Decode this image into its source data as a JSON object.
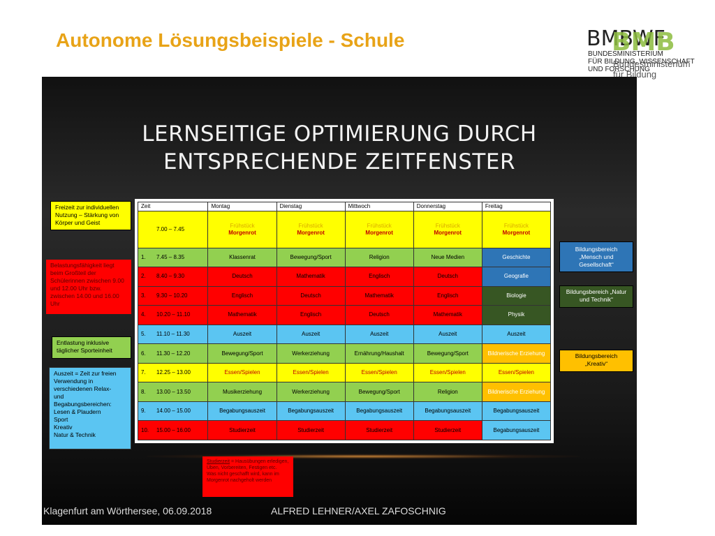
{
  "slide": {
    "title": "Autonome Lösungsbeispiele - Schule",
    "footer_left": "Klagenfurt am Wörthersee, 06.09.2018",
    "footer_right": "ALFRED LEHNER/AXEL ZAFOSCHNIG"
  },
  "logo": {
    "bmbwf": "BMBWF",
    "bmb": "BMB",
    "line1": "BUNDESMINISTERIUM",
    "line2": "FÜR BILDUNG, WISSENSCHAFT",
    "line3": "UND FORSCHUNG",
    "sub1": "Bundesministerium",
    "sub2": "für Bildung"
  },
  "panel": {
    "heading_line1": "LERNSEITIGE OPTIMIERUNG DURCH",
    "heading_line2": "ENTSPRECHENDE ZEITFENSTER"
  },
  "schedule": {
    "headers": [
      "Zeit",
      "Montag",
      "Dienstag",
      "Mittwoch",
      "Donnerstag",
      "Freitag"
    ],
    "rows": [
      {
        "num": "",
        "time": "7.00 – 7.45",
        "color": "y",
        "cells": [
          {
            "fr": "Frühstück",
            "mr": "Morgenrot",
            "c": "y"
          },
          {
            "fr": "Frühstück",
            "mr": "Morgenrot",
            "c": "y"
          },
          {
            "fr": "Frühstück",
            "mr": "Morgenrot",
            "c": "y"
          },
          {
            "fr": "Frühstück",
            "mr": "Morgenrot",
            "c": "y"
          },
          {
            "fr": "Frühstück",
            "mr": "Morgenrot",
            "c": "y"
          }
        ]
      },
      {
        "num": "1.",
        "time": "7.45 – 8.35",
        "color": "g",
        "cells": [
          {
            "t": "Klassenrat",
            "c": "g"
          },
          {
            "t": "Bewegung/Sport",
            "c": "g"
          },
          {
            "t": "Religion",
            "c": "g"
          },
          {
            "t": "Neue Medien",
            "c": "g"
          },
          {
            "t": "Geschichte",
            "c": "db"
          }
        ]
      },
      {
        "num": "2.",
        "time": "8.40 – 9.30",
        "color": "r",
        "cells": [
          {
            "t": "Deutsch",
            "c": "r"
          },
          {
            "t": "Mathematik",
            "c": "r"
          },
          {
            "t": "Englisch",
            "c": "r"
          },
          {
            "t": "Deutsch",
            "c": "r"
          },
          {
            "t": "Geografie",
            "c": "db"
          }
        ]
      },
      {
        "num": "3.",
        "time": "9.30 – 10.20",
        "color": "r",
        "cells": [
          {
            "t": "Englisch",
            "c": "r"
          },
          {
            "t": "Deutsch",
            "c": "r"
          },
          {
            "t": "Mathematik",
            "c": "r"
          },
          {
            "t": "Englisch",
            "c": "r"
          },
          {
            "t": "Biologie",
            "c": "dg"
          }
        ]
      },
      {
        "num": "4.",
        "time": "10.20 – 11.10",
        "color": "r",
        "cells": [
          {
            "t": "Mathematik",
            "c": "r"
          },
          {
            "t": "Englisch",
            "c": "r"
          },
          {
            "t": "Deutsch",
            "c": "r"
          },
          {
            "t": "Mathematik",
            "c": "r"
          },
          {
            "t": "Physik",
            "c": "dg"
          }
        ]
      },
      {
        "num": "5.",
        "time": "11.10 – 11.30",
        "color": "b",
        "cells": [
          {
            "t": "Auszeit",
            "c": "b"
          },
          {
            "t": "Auszeit",
            "c": "b"
          },
          {
            "t": "Auszeit",
            "c": "b"
          },
          {
            "t": "Auszeit",
            "c": "b"
          },
          {
            "t": "Auszeit",
            "c": "b"
          }
        ]
      },
      {
        "num": "6.",
        "time": "11.30 – 12.20",
        "color": "g",
        "cells": [
          {
            "t": "Bewegung/Sport",
            "c": "g"
          },
          {
            "t": "Werkerziehung",
            "c": "g"
          },
          {
            "t": "Ernährung/Haushalt",
            "c": "g"
          },
          {
            "t": "Bewegung/Sport",
            "c": "g"
          },
          {
            "t": "Bildnerische Erziehung",
            "c": "o"
          }
        ]
      },
      {
        "num": "7.",
        "time": "12.25 – 13.00",
        "color": "y",
        "cells": [
          {
            "t": "Essen/Spielen",
            "c": "y"
          },
          {
            "t": "Essen/Spielen",
            "c": "y"
          },
          {
            "t": "Essen/Spielen",
            "c": "y"
          },
          {
            "t": "Essen/Spielen",
            "c": "y"
          },
          {
            "t": "Essen/Spielen",
            "c": "y"
          }
        ]
      },
      {
        "num": "8.",
        "time": "13.00 – 13.50",
        "color": "g",
        "cells": [
          {
            "t": "Musikerziehung",
            "c": "g"
          },
          {
            "t": "Werkerziehung",
            "c": "g"
          },
          {
            "t": "Bewegung/Sport",
            "c": "g"
          },
          {
            "t": "Religion",
            "c": "g"
          },
          {
            "t": "Bildnerische Erziehung",
            "c": "o"
          }
        ]
      },
      {
        "num": "9.",
        "time": "14.00 – 15.00",
        "color": "b",
        "cells": [
          {
            "t": "Begabungsauszeit",
            "c": "b"
          },
          {
            "t": "Begabungsauszeit",
            "c": "b"
          },
          {
            "t": "Begabungsauszeit",
            "c": "b"
          },
          {
            "t": "Begabungsauszeit",
            "c": "b"
          },
          {
            "t": "Begabungsauszeit",
            "c": "b"
          }
        ]
      },
      {
        "num": "10.",
        "time": "15.00 – 16.00",
        "color": "r",
        "cells": [
          {
            "t": "Studierzeit",
            "c": "r"
          },
          {
            "t": "Studierzeit",
            "c": "r"
          },
          {
            "t": "Studierzeit",
            "c": "r"
          },
          {
            "t": "Studierzeit",
            "c": "r"
          },
          {
            "t": "Begabungsauszeit",
            "c": "b"
          }
        ]
      }
    ]
  },
  "notes": {
    "freizeit": "Freizeit zur individuellen Nutzung – Stärkung von Körper und Geist",
    "belastung": "Belastungsfähigkeit liegt beim Großteil der Schülerinnen zwischen 9.00 und 12.00 Uhr bzw. zwischen 14.00 und 16.00 Uhr",
    "entlastung": "Entlastung inklusive täglicher Sporteinheit",
    "auszeit_lines": [
      "Auszeit = Zeit zur freien",
      "Verwendung in",
      "verschiedenen Relax-",
      "und",
      "Begabungsbereichen:",
      "Lesen & Plaudern",
      "Sport",
      "Kreativ",
      "Natur & Technik"
    ],
    "mensch": "Bildungsbereich „Mensch und Gesellschaft“",
    "natur": "Bildungsbereich „Natur und Technik“",
    "kreativ": "Bildungsbereich „Kreativ“",
    "studierzeit_word": "Studierzeit",
    "studierzeit_rest": " = Hausübungen erledigen, Üben, Vorbereiten, Festigen etc.",
    "studierzeit_line2": "Was nicht geschafft wird, kann im Morgenrot nachgeholt werden"
  }
}
